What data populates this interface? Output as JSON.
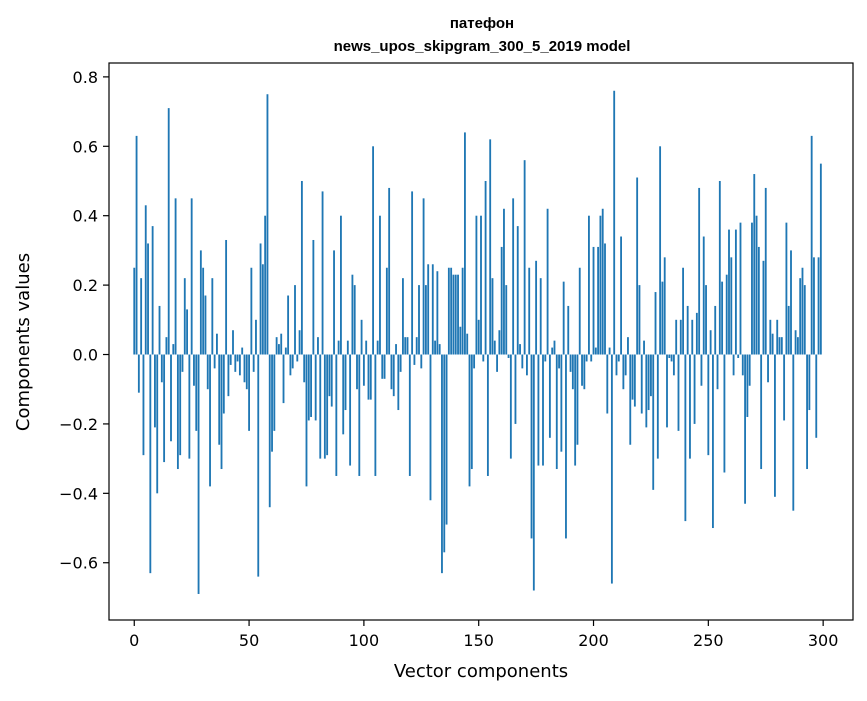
{
  "chart_data": {
    "type": "bar",
    "title": "патефон",
    "subtitle": "news_upos_skipgram_300_5_2019 model",
    "xlabel": "Vector components",
    "ylabel": "Components values",
    "xlim": [
      -11,
      313
    ],
    "ylim": [
      -0.765,
      0.84
    ],
    "xticks": [
      0,
      50,
      100,
      150,
      200,
      250,
      300
    ],
    "yticks": [
      -0.6,
      -0.4,
      -0.2,
      0.0,
      0.2,
      0.4,
      0.6,
      0.8
    ],
    "ytick_labels": [
      "−0.6",
      "−0.4",
      "−0.2",
      "0.0",
      "0.2",
      "0.4",
      "0.6",
      "0.8"
    ],
    "bar_color": "#1f77b4",
    "grid": false,
    "values": [
      0.25,
      0.63,
      -0.11,
      0.22,
      -0.29,
      0.43,
      0.32,
      -0.63,
      0.37,
      -0.21,
      -0.4,
      0.14,
      -0.08,
      -0.31,
      0.05,
      0.71,
      -0.25,
      0.03,
      0.45,
      -0.33,
      -0.29,
      -0.05,
      0.22,
      0.13,
      -0.3,
      0.45,
      -0.09,
      -0.22,
      -0.69,
      0.3,
      0.25,
      0.17,
      -0.1,
      -0.38,
      0.22,
      -0.04,
      0.06,
      -0.26,
      -0.33,
      -0.17,
      0.33,
      -0.12,
      -0.03,
      0.07,
      -0.05,
      -0.02,
      -0.06,
      0.02,
      -0.08,
      -0.1,
      -0.22,
      0.25,
      -0.05,
      0.1,
      -0.64,
      0.32,
      0.26,
      0.4,
      0.75,
      -0.44,
      -0.28,
      -0.22,
      0.05,
      0.03,
      0.06,
      -0.14,
      0.02,
      0.17,
      -0.06,
      -0.04,
      0.2,
      -0.02,
      0.07,
      0.5,
      -0.08,
      -0.38,
      -0.19,
      -0.18,
      0.33,
      -0.19,
      0.05,
      -0.3,
      0.47,
      -0.3,
      -0.29,
      -0.12,
      -0.15,
      0.3,
      -0.35,
      0.04,
      0.4,
      -0.23,
      -0.16,
      0.04,
      -0.32,
      0.23,
      0.2,
      -0.1,
      -0.35,
      0.1,
      -0.09,
      0.04,
      -0.13,
      -0.13,
      0.6,
      -0.35,
      0.04,
      0.4,
      -0.07,
      -0.07,
      0.25,
      0.48,
      -0.1,
      -0.12,
      0.03,
      -0.16,
      -0.05,
      0.22,
      0.05,
      0.05,
      -0.35,
      0.47,
      -0.03,
      0.05,
      0.2,
      -0.04,
      0.45,
      0.2,
      0.26,
      -0.42,
      0.26,
      0.04,
      0.24,
      0.03,
      -0.63,
      -0.57,
      -0.49,
      0.25,
      0.25,
      0.23,
      0.23,
      0.23,
      0.08,
      0.25,
      0.64,
      0.06,
      -0.38,
      -0.33,
      -0.04,
      0.4,
      0.1,
      0.4,
      -0.02,
      0.5,
      -0.35,
      0.62,
      0.22,
      0.04,
      -0.05,
      0.07,
      0.31,
      0.42,
      0.2,
      -0.01,
      -0.3,
      0.45,
      -0.2,
      0.37,
      0.03,
      -0.04,
      0.56,
      -0.06,
      0.25,
      -0.53,
      -0.68,
      0.27,
      -0.32,
      0.22,
      -0.32,
      -0.02,
      0.42,
      -0.24,
      0.02,
      0.04,
      -0.33,
      -0.04,
      -0.28,
      0.21,
      -0.53,
      0.14,
      -0.05,
      -0.1,
      -0.32,
      -0.26,
      0.25,
      -0.09,
      -0.1,
      -0.02,
      0.4,
      -0.02,
      0.31,
      0.02,
      0.31,
      0.4,
      0.42,
      0.32,
      -0.17,
      0.02,
      -0.66,
      0.76,
      -0.06,
      -0.02,
      0.34,
      -0.1,
      -0.06,
      0.05,
      -0.26,
      -0.13,
      -0.15,
      0.51,
      0.2,
      -0.17,
      0.04,
      -0.21,
      -0.16,
      -0.12,
      -0.39,
      0.18,
      -0.3,
      0.6,
      0.21,
      0.28,
      -0.21,
      -0.01,
      -0.02,
      -0.06,
      0.1,
      -0.22,
      0.1,
      0.25,
      -0.48,
      0.14,
      -0.3,
      0.1,
      -0.2,
      0.12,
      0.48,
      -0.09,
      0.34,
      0.2,
      -0.29,
      0.07,
      -0.5,
      0.14,
      -0.1,
      0.5,
      0.21,
      -0.34,
      0.23,
      0.36,
      0.28,
      -0.06,
      0.36,
      -0.01,
      0.38,
      -0.06,
      -0.43,
      -0.18,
      -0.09,
      0.38,
      0.52,
      0.4,
      0.31,
      -0.33,
      0.27,
      0.48,
      -0.08,
      0.1,
      0.06,
      -0.41,
      0.1,
      0.05,
      0.05,
      -0.19,
      0.38,
      0.14,
      0.3,
      -0.45,
      0.07,
      0.05,
      0.22,
      0.25,
      0.2,
      -0.33,
      -0.16,
      0.63,
      0.28,
      -0.24,
      0.28,
      0.55
    ]
  }
}
